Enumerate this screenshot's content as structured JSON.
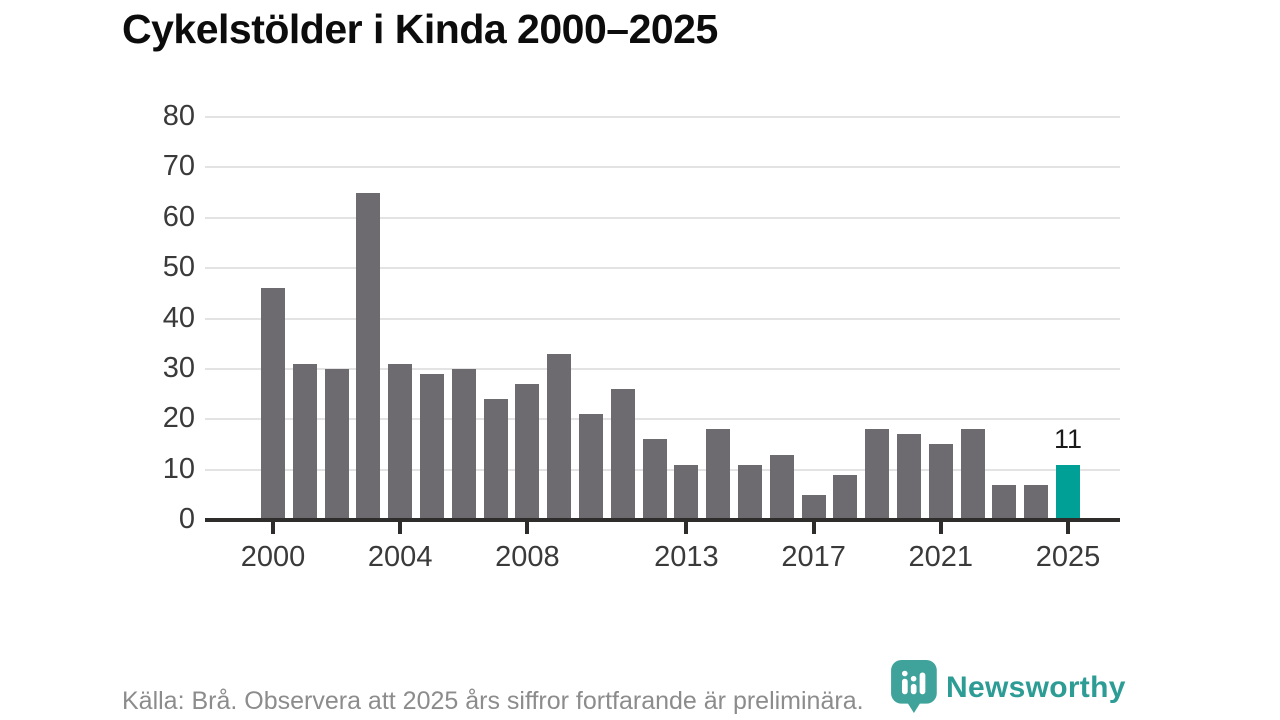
{
  "chart_data": {
    "type": "bar",
    "title": "Cykelstölder i Kinda 2000–2025",
    "years": [
      2000,
      2001,
      2002,
      2003,
      2004,
      2005,
      2006,
      2007,
      2008,
      2009,
      2010,
      2011,
      2012,
      2013,
      2014,
      2015,
      2016,
      2017,
      2018,
      2019,
      2020,
      2021,
      2022,
      2023,
      2024,
      2025
    ],
    "values": [
      46,
      31,
      30,
      65,
      31,
      29,
      30,
      24,
      27,
      33,
      21,
      26,
      16,
      11,
      18,
      11,
      13,
      5,
      9,
      18,
      17,
      15,
      18,
      7,
      7,
      11
    ],
    "highlight_index": 25,
    "highlight_label": "11",
    "y_ticks": [
      0,
      10,
      20,
      30,
      40,
      50,
      60,
      70,
      80
    ],
    "ylim": [
      0,
      80
    ],
    "x_tick_labels": [
      "2000",
      "2004",
      "2008",
      "2013",
      "2017",
      "2021",
      "2025"
    ],
    "x_tick_indices": [
      0,
      4,
      8,
      13,
      17,
      21,
      25
    ],
    "grid": true,
    "legend": "none",
    "xlabel": "",
    "ylabel": ""
  },
  "footer": {
    "source_note": "Källa: Brå. Observera att 2025 års siffror fortfarande är preliminära.",
    "brand": "Newsworthy"
  },
  "colors": {
    "bar": "#6e6b70",
    "highlight": "#00a096",
    "axis": "#2e2d2c",
    "grid": "#e3e3e3",
    "tick_text": "#3a3a3a",
    "title_text": "#0c0c0c",
    "footer_text": "#8c8c8c",
    "brand_teal": "#2c9c95",
    "logo_badge": "#3fa39b"
  },
  "icons": {
    "logo": "newsworthy-pin-barchart-icon"
  }
}
